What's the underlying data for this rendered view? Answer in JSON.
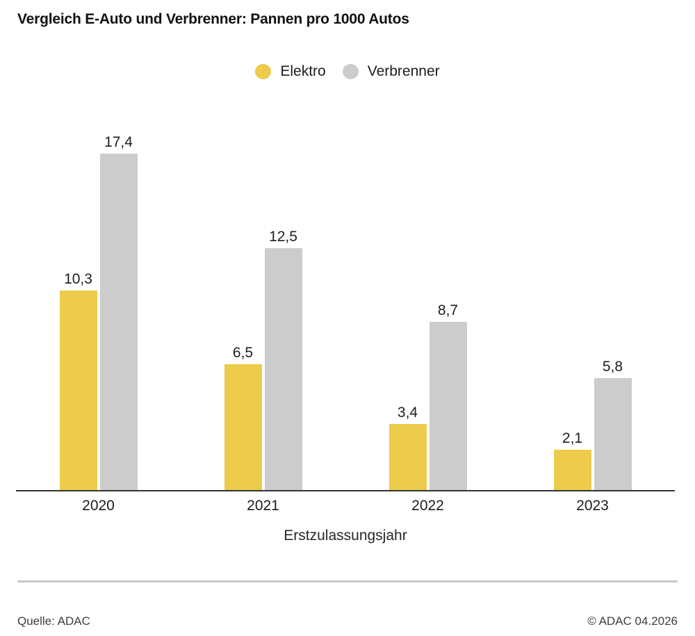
{
  "title": "Vergleich E-Auto und Verbrenner: Pannen pro 1000 Autos",
  "footer": {
    "source": "Quelle: ADAC",
    "copyright": "© ADAC 04.2026"
  },
  "colors": {
    "elektro": "#EDCB4B",
    "verbrenner": "#CCCCCC",
    "axis_line": "#333333",
    "divider": "#C9C9C9",
    "text": "#1D1D1D"
  },
  "chart_data": {
    "type": "bar",
    "title": "Vergleich E-Auto und Verbrenner: Pannen pro 1000 Autos",
    "categories": [
      "2020",
      "2021",
      "2022",
      "2023"
    ],
    "series": [
      {
        "name": "Elektro",
        "color": "#EDCB4B",
        "values": [
          10.3,
          6.5,
          3.4,
          2.1
        ],
        "labels": [
          "10,3",
          "6,5",
          "3,4",
          "2,1"
        ]
      },
      {
        "name": "Verbrenner",
        "color": "#CCCCCC",
        "values": [
          17.4,
          12.5,
          8.7,
          5.8
        ],
        "labels": [
          "17,4",
          "12,5",
          "8,7",
          "5,8"
        ]
      }
    ],
    "xlabel": "Erstzulassungsjahr",
    "ylabel": "",
    "ylim": [
      0,
      17.4
    ],
    "grid": false,
    "value_labels_shown": true,
    "legend_position": "top-center"
  }
}
